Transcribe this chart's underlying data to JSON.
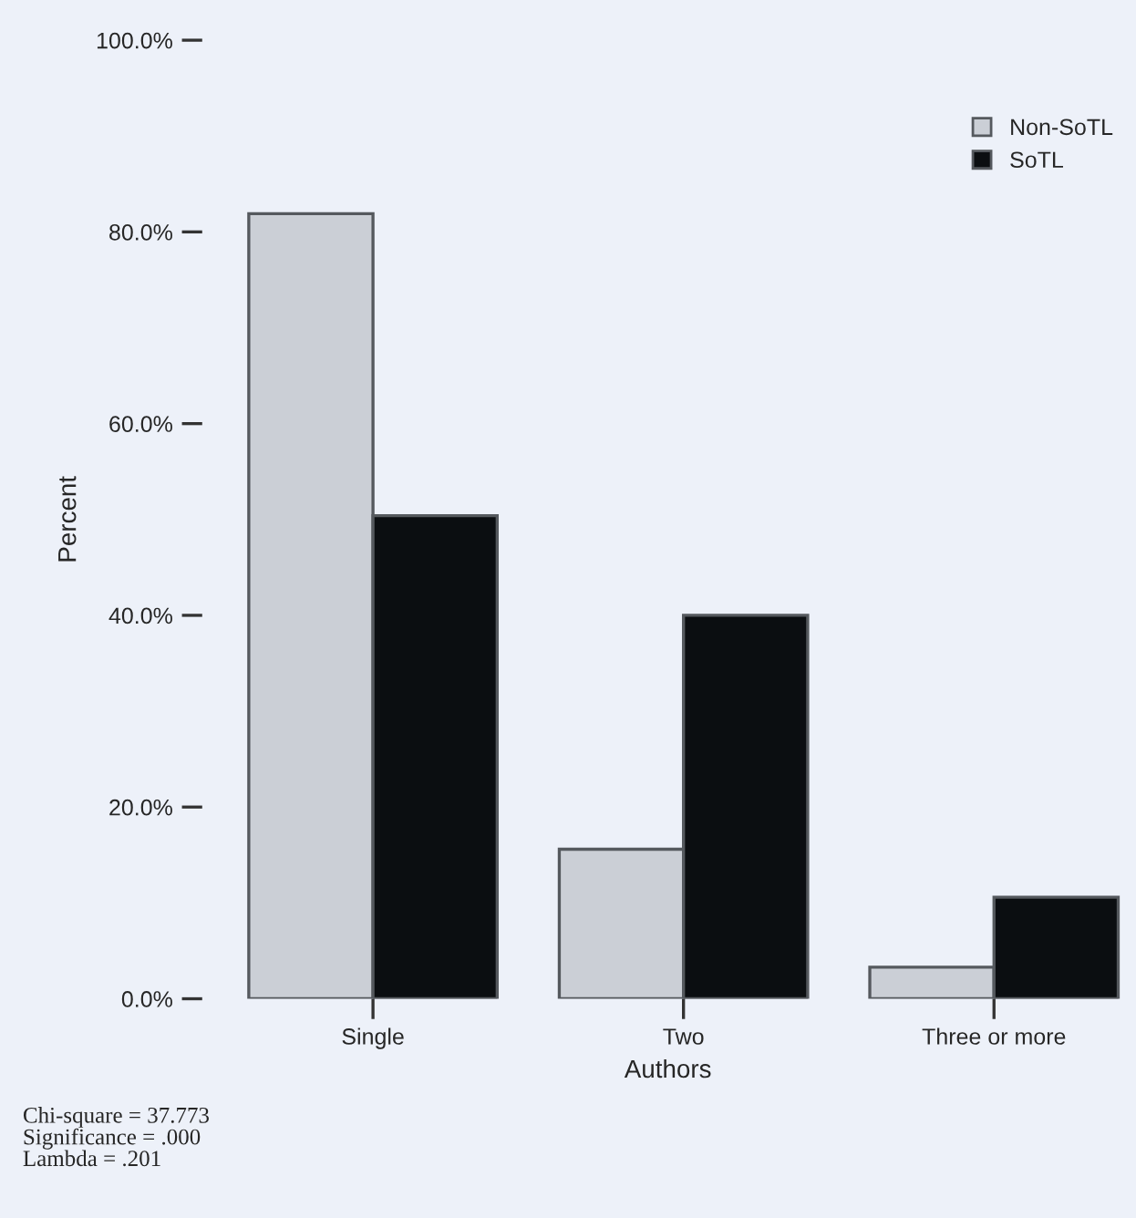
{
  "chart_data": {
    "type": "bar",
    "xlabel": "Authors",
    "ylabel": "Percent",
    "categories": [
      "Single",
      "Two",
      "Three or more"
    ],
    "series": [
      {
        "name": "Non-SoTL",
        "color": "#cbcfd6",
        "values": [
          81.9,
          15.6,
          3.3
        ]
      },
      {
        "name": "SoTL",
        "color": "#0b0e11",
        "values": [
          50.4,
          40.0,
          10.6
        ]
      }
    ],
    "ylim": [
      0,
      100
    ],
    "yticks": [
      {
        "value": 0,
        "label": "0.0%"
      },
      {
        "value": 20,
        "label": "20.0%"
      },
      {
        "value": 40,
        "label": "40.0%"
      },
      {
        "value": 60,
        "label": "60.0%"
      },
      {
        "value": 80,
        "label": "80.0%"
      },
      {
        "value": 100,
        "label": "100.0%"
      }
    ],
    "grid": false,
    "legend": "top right",
    "annotations": [
      "Chi-square = 37.773\nSignificance = .000\nLambda = .201"
    ]
  }
}
